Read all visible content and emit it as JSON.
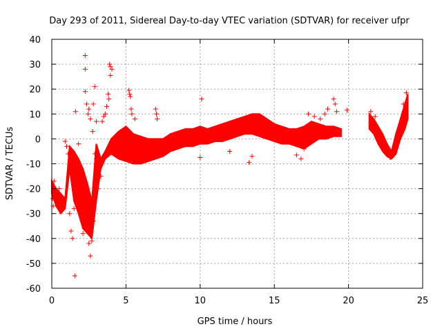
{
  "chart_data": {
    "type": "scatter",
    "title": "Day 293 of 2011, Sidereal Day-to-day VTEC variation (SDTVAR) for receiver ufpr",
    "xlabel": "GPS time / hours",
    "ylabel": "SDTVAR / TECUs",
    "xlim": [
      0,
      25
    ],
    "ylim": [
      -60,
      40
    ],
    "x_ticks": [
      "0",
      "5",
      "10",
      "15",
      "20",
      "25"
    ],
    "y_ticks": [
      "-60",
      "-50",
      "-40",
      "-30",
      "-20",
      "-10",
      "0",
      "10",
      "20",
      "30",
      "40"
    ],
    "grid": true,
    "marker": "plus",
    "color": "#ff0000",
    "dense_band": {
      "x": [
        0.0,
        0.3,
        0.6,
        0.9,
        1.2,
        1.5,
        1.8,
        2.1,
        2.4,
        2.7,
        3.0,
        3.3,
        3.6,
        4.0,
        4.5,
        5.0,
        5.5,
        6.0,
        6.5,
        7.0,
        7.5,
        8.0,
        8.5,
        9.0,
        9.5,
        10.0,
        10.5,
        11.0,
        11.5,
        12.0,
        12.5,
        13.0,
        13.5,
        14.0,
        14.5,
        15.0,
        15.5,
        16.0,
        16.5,
        17.0,
        17.5,
        18.0,
        18.5,
        19.0,
        19.5,
        21.4,
        21.7,
        22.0,
        22.3,
        22.6,
        22.9,
        23.2,
        23.5,
        23.8,
        24.0
      ],
      "upper": [
        -17,
        -20,
        -22,
        -24,
        -3,
        -5,
        -8,
        -12,
        -18,
        -25,
        -2,
        -8,
        -5,
        0,
        3,
        5,
        2,
        1,
        0,
        0,
        0,
        2,
        3,
        4,
        4,
        5,
        4,
        5,
        6,
        7,
        8,
        9,
        10,
        10,
        8,
        6,
        5,
        4,
        4,
        5,
        7,
        6,
        5,
        5,
        4,
        10,
        8,
        5,
        2,
        -2,
        -5,
        2,
        8,
        14,
        18
      ],
      "lower": [
        -22,
        -27,
        -30,
        -28,
        -12,
        -25,
        -30,
        -36,
        -38,
        -40,
        -25,
        -12,
        -8,
        -6,
        -8,
        -9,
        -10,
        -10,
        -9,
        -8,
        -7,
        -5,
        -4,
        -3,
        -3,
        -2,
        -2,
        -1,
        -1,
        0,
        1,
        2,
        2,
        1,
        0,
        -1,
        -2,
        -2,
        -3,
        -4,
        -2,
        0,
        0,
        1,
        1,
        4,
        2,
        -2,
        -5,
        -7,
        -8,
        -6,
        0,
        4,
        8
      ]
    },
    "points": [
      {
        "x": 2.25,
        "y": 33.5
      },
      {
        "x": 2.25,
        "y": 28
      },
      {
        "x": 2.25,
        "y": 19
      },
      {
        "x": 2.35,
        "y": 14
      },
      {
        "x": 2.45,
        "y": 10
      },
      {
        "x": 2.5,
        "y": 12
      },
      {
        "x": 2.6,
        "y": 8
      },
      {
        "x": 2.75,
        "y": 3
      },
      {
        "x": 2.9,
        "y": 21
      },
      {
        "x": 2.8,
        "y": 14
      },
      {
        "x": 3.0,
        "y": 7
      },
      {
        "x": 1.6,
        "y": 11
      },
      {
        "x": 3.9,
        "y": 30
      },
      {
        "x": 3.95,
        "y": 29
      },
      {
        "x": 4.05,
        "y": 28
      },
      {
        "x": 3.95,
        "y": 25.5
      },
      {
        "x": 3.8,
        "y": 18
      },
      {
        "x": 3.85,
        "y": 16
      },
      {
        "x": 3.7,
        "y": 13
      },
      {
        "x": 3.6,
        "y": 10
      },
      {
        "x": 3.5,
        "y": 9
      },
      {
        "x": 3.4,
        "y": 7
      },
      {
        "x": 5.2,
        "y": 19.5
      },
      {
        "x": 5.25,
        "y": 18
      },
      {
        "x": 5.3,
        "y": 17
      },
      {
        "x": 5.35,
        "y": 12
      },
      {
        "x": 5.4,
        "y": 10
      },
      {
        "x": 5.6,
        "y": 8
      },
      {
        "x": 7.0,
        "y": 12
      },
      {
        "x": 7.05,
        "y": 10
      },
      {
        "x": 7.1,
        "y": 8
      },
      {
        "x": 10.1,
        "y": 16
      },
      {
        "x": 10.0,
        "y": -7.5
      },
      {
        "x": 13.3,
        "y": -9.5
      },
      {
        "x": 13.5,
        "y": -7
      },
      {
        "x": 12.0,
        "y": -5
      },
      {
        "x": 16.5,
        "y": -6.5
      },
      {
        "x": 16.8,
        "y": -8
      },
      {
        "x": 17.0,
        "y": -4
      },
      {
        "x": 18.6,
        "y": 12
      },
      {
        "x": 19.0,
        "y": 16
      },
      {
        "x": 19.1,
        "y": 14
      },
      {
        "x": 19.2,
        "y": 11
      },
      {
        "x": 19.9,
        "y": 11.5
      },
      {
        "x": 18.4,
        "y": 10
      },
      {
        "x": 18.1,
        "y": 8
      },
      {
        "x": 17.7,
        "y": 9
      },
      {
        "x": 17.3,
        "y": 10
      },
      {
        "x": 1.55,
        "y": -55
      },
      {
        "x": 2.6,
        "y": -47
      },
      {
        "x": 2.5,
        "y": -42
      },
      {
        "x": 2.7,
        "y": -41
      },
      {
        "x": 1.4,
        "y": -40
      },
      {
        "x": 1.3,
        "y": -37
      },
      {
        "x": 2.1,
        "y": -38
      },
      {
        "x": 2.2,
        "y": -36
      },
      {
        "x": 0.05,
        "y": -24
      },
      {
        "x": 0.1,
        "y": -27
      },
      {
        "x": 0.2,
        "y": -23
      },
      {
        "x": 0.35,
        "y": -21
      },
      {
        "x": 0.15,
        "y": -17
      },
      {
        "x": 0.5,
        "y": -20
      },
      {
        "x": 1.0,
        "y": -3
      },
      {
        "x": 0.9,
        "y": -1
      },
      {
        "x": 1.1,
        "y": -6
      },
      {
        "x": 1.8,
        "y": -2
      },
      {
        "x": 1.7,
        "y": -12
      },
      {
        "x": 1.9,
        "y": -20
      },
      {
        "x": 2.05,
        "y": -25
      },
      {
        "x": 2.3,
        "y": -30
      },
      {
        "x": 2.8,
        "y": -33
      },
      {
        "x": 3.1,
        "y": -20
      },
      {
        "x": 3.3,
        "y": -15
      },
      {
        "x": 3.15,
        "y": -12
      },
      {
        "x": 1.5,
        "y": -28
      },
      {
        "x": 1.2,
        "y": -30
      },
      {
        "x": 2.9,
        "y": -6
      },
      {
        "x": 3.0,
        "y": -8
      },
      {
        "x": 4.3,
        "y": -3
      },
      {
        "x": 21.5,
        "y": 11
      },
      {
        "x": 21.8,
        "y": 9
      },
      {
        "x": 23.9,
        "y": 18.5
      },
      {
        "x": 23.7,
        "y": 14
      },
      {
        "x": 22.8,
        "y": -7.5
      }
    ]
  }
}
